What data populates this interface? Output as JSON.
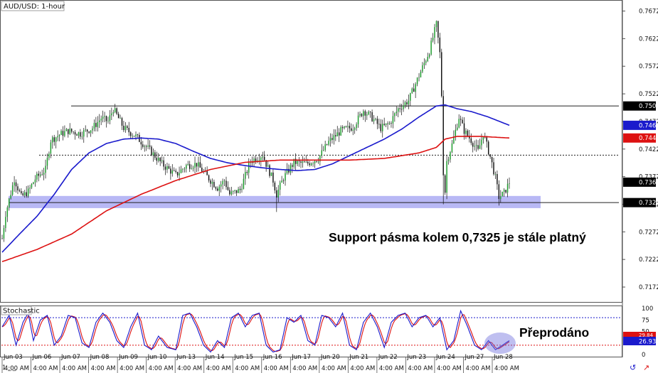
{
  "chart_data": {
    "type": "candlestick",
    "title": "AUD/USD: 1-hour",
    "ylim": [
      0.7145,
      0.7692
    ],
    "y_ticks": [
      "0.7672",
      "0.7622",
      "0.7572",
      "0.7522",
      "0.7472",
      "0.7422",
      "0.7372",
      "0.7322",
      "0.7272",
      "0.7222",
      "0.7172"
    ],
    "x_date_labels": [
      "Jun 03",
      "Jun 06",
      "Jun 07",
      "Jun 08",
      "Jun 09",
      "Jun 10",
      "Jun 13",
      "Jun 14",
      "Jun 15",
      "Jun 16",
      "Jun 17",
      "Jun 20",
      "Jun 21",
      "Jun 22",
      "Jun 23",
      "Jun 24",
      "Jun 27",
      "Jun 28"
    ],
    "x_time_label": "4:00 AM",
    "bottom_left_label": "1 _ _",
    "grid": false,
    "price_anchors": [
      [
        0,
        0.726
      ],
      [
        2,
        0.7305
      ],
      [
        7,
        0.7368
      ],
      [
        11,
        0.7335
      ],
      [
        15,
        0.7345
      ],
      [
        19,
        0.7368
      ],
      [
        25,
        0.7385
      ],
      [
        28,
        0.7438
      ],
      [
        33,
        0.7448
      ],
      [
        38,
        0.7455
      ],
      [
        45,
        0.745
      ],
      [
        52,
        0.746
      ],
      [
        57,
        0.7478
      ],
      [
        61,
        0.7472
      ],
      [
        64,
        0.7495
      ],
      [
        70,
        0.746
      ],
      [
        77,
        0.7445
      ],
      [
        85,
        0.742
      ],
      [
        92,
        0.7395
      ],
      [
        100,
        0.7375
      ],
      [
        106,
        0.7392
      ],
      [
        112,
        0.7395
      ],
      [
        118,
        0.7372
      ],
      [
        124,
        0.7352
      ],
      [
        128,
        0.7365
      ],
      [
        131,
        0.734
      ],
      [
        137,
        0.7348
      ],
      [
        143,
        0.74
      ],
      [
        150,
        0.7412
      ],
      [
        152,
        0.7395
      ],
      [
        156,
        0.7365
      ],
      [
        158,
        0.734
      ],
      [
        162,
        0.737
      ],
      [
        168,
        0.7398
      ],
      [
        175,
        0.7395
      ],
      [
        182,
        0.7405
      ],
      [
        188,
        0.7435
      ],
      [
        195,
        0.7455
      ],
      [
        202,
        0.7462
      ],
      [
        208,
        0.7492
      ],
      [
        212,
        0.7482
      ],
      [
        218,
        0.746
      ],
      [
        223,
        0.7468
      ],
      [
        228,
        0.7495
      ],
      [
        234,
        0.751
      ],
      [
        240,
        0.7555
      ],
      [
        246,
        0.76
      ],
      [
        250,
        0.7648
      ],
      [
        252,
        0.7595
      ],
      [
        253,
        0.752
      ],
      [
        254,
        0.738
      ],
      [
        255,
        0.7345
      ],
      [
        256,
        0.74
      ],
      [
        259,
        0.743
      ],
      [
        263,
        0.748
      ],
      [
        266,
        0.7455
      ],
      [
        270,
        0.7438
      ],
      [
        274,
        0.7418
      ],
      [
        277,
        0.745
      ],
      [
        281,
        0.7408
      ],
      [
        284,
        0.737
      ],
      [
        286,
        0.7335
      ],
      [
        289,
        0.7342
      ],
      [
        292,
        0.7362
      ]
    ],
    "wick_extremes": [
      {
        "index": 250,
        "high": 0.7655
      },
      {
        "index": 254,
        "low": 0.7322
      },
      {
        "index": 158,
        "low": 0.7308
      }
    ],
    "series": [
      {
        "name": "",
        "color": "#1a1acc",
        "values": [
          [
            0,
            0.7235
          ],
          [
            10,
            0.7268
          ],
          [
            20,
            0.73
          ],
          [
            30,
            0.734
          ],
          [
            40,
            0.7385
          ],
          [
            50,
            0.7415
          ],
          [
            60,
            0.7432
          ],
          [
            70,
            0.744
          ],
          [
            80,
            0.7442
          ],
          [
            90,
            0.744
          ],
          [
            100,
            0.7432
          ],
          [
            110,
            0.7418
          ],
          [
            120,
            0.7405
          ],
          [
            130,
            0.7397
          ],
          [
            140,
            0.7392
          ],
          [
            150,
            0.7388
          ],
          [
            160,
            0.7385
          ],
          [
            170,
            0.7383
          ],
          [
            180,
            0.7385
          ],
          [
            190,
            0.7395
          ],
          [
            200,
            0.741
          ],
          [
            210,
            0.7425
          ],
          [
            220,
            0.744
          ],
          [
            230,
            0.7458
          ],
          [
            240,
            0.748
          ],
          [
            250,
            0.75
          ],
          [
            255,
            0.7502
          ],
          [
            262,
            0.7495
          ],
          [
            270,
            0.749
          ],
          [
            280,
            0.748
          ],
          [
            292,
            0.7465
          ]
        ]
      },
      {
        "name": "",
        "color": "#dd1111",
        "values": [
          [
            0,
            0.7218
          ],
          [
            20,
            0.724
          ],
          [
            40,
            0.7268
          ],
          [
            60,
            0.731
          ],
          [
            80,
            0.734
          ],
          [
            100,
            0.7365
          ],
          [
            120,
            0.7385
          ],
          [
            140,
            0.7398
          ],
          [
            160,
            0.7402
          ],
          [
            180,
            0.7402
          ],
          [
            200,
            0.7402
          ],
          [
            220,
            0.7405
          ],
          [
            240,
            0.7415
          ],
          [
            250,
            0.7425
          ],
          [
            255,
            0.744
          ],
          [
            262,
            0.7445
          ],
          [
            275,
            0.7445
          ],
          [
            292,
            0.7442
          ]
        ]
      }
    ],
    "support_band": [
      0.7315,
      0.7337
    ],
    "horizontal_lines": [
      {
        "value": 0.75,
        "style": "solid"
      },
      {
        "value": 0.7411,
        "style": "dotted"
      },
      {
        "value": 0.7325,
        "style": "solid"
      }
    ],
    "price_tags": [
      {
        "text": "0.7500",
        "value": 0.75,
        "bg": "#000000",
        "fg": "#ffffff"
      },
      {
        "text": "0.7465",
        "value": 0.7465,
        "bg": "#1a1acc",
        "fg": "#ffffff"
      },
      {
        "text": "0.7442",
        "value": 0.7442,
        "bg": "#dd1111",
        "fg": "#ffffff"
      },
      {
        "text": "0.7362",
        "value": 0.7362,
        "bg": "#000000",
        "fg": "#ffffff"
      },
      {
        "text": "0.7325",
        "value": 0.7325,
        "bg": "#000000",
        "fg": "#ffffff"
      }
    ],
    "annotation_price": "Support pásma kolem 0,7325 je stále platný",
    "stochastic": {
      "title": "Stochastic",
      "ylim": [
        -5,
        105
      ],
      "y_ticks": [
        "100",
        "75",
        "50",
        "25",
        "0"
      ],
      "levels": [
        80,
        20
      ],
      "k_tag": "26.93",
      "d_tag_partial": "29.84",
      "annotation": "Přeprodáno",
      "k_anchors": [
        [
          0,
          60
        ],
        [
          4,
          85
        ],
        [
          8,
          20
        ],
        [
          12,
          70
        ],
        [
          15,
          90
        ],
        [
          18,
          30
        ],
        [
          22,
          75
        ],
        [
          26,
          85
        ],
        [
          30,
          20
        ],
        [
          34,
          40
        ],
        [
          38,
          85
        ],
        [
          42,
          80
        ],
        [
          46,
          25
        ],
        [
          50,
          15
        ],
        [
          54,
          70
        ],
        [
          58,
          90
        ],
        [
          62,
          70
        ],
        [
          66,
          30
        ],
        [
          70,
          15
        ],
        [
          74,
          60
        ],
        [
          78,
          90
        ],
        [
          82,
          20
        ],
        [
          86,
          10
        ],
        [
          90,
          40
        ],
        [
          95,
          15
        ],
        [
          100,
          10
        ],
        [
          104,
          85
        ],
        [
          108,
          90
        ],
        [
          112,
          60
        ],
        [
          116,
          20
        ],
        [
          120,
          5
        ],
        [
          124,
          30
        ],
        [
          128,
          15
        ],
        [
          132,
          80
        ],
        [
          136,
          90
        ],
        [
          140,
          60
        ],
        [
          144,
          85
        ],
        [
          148,
          90
        ],
        [
          152,
          20
        ],
        [
          156,
          5
        ],
        [
          160,
          10
        ],
        [
          164,
          80
        ],
        [
          168,
          70
        ],
        [
          172,
          85
        ],
        [
          176,
          30
        ],
        [
          180,
          20
        ],
        [
          184,
          85
        ],
        [
          188,
          80
        ],
        [
          192,
          60
        ],
        [
          196,
          90
        ],
        [
          200,
          20
        ],
        [
          204,
          10
        ],
        [
          208,
          70
        ],
        [
          212,
          90
        ],
        [
          216,
          60
        ],
        [
          220,
          15
        ],
        [
          224,
          70
        ],
        [
          228,
          85
        ],
        [
          232,
          90
        ],
        [
          236,
          60
        ],
        [
          240,
          80
        ],
        [
          244,
          85
        ],
        [
          248,
          60
        ],
        [
          252,
          80
        ],
        [
          256,
          10
        ],
        [
          260,
          30
        ],
        [
          264,
          95
        ],
        [
          268,
          60
        ],
        [
          272,
          20
        ],
        [
          276,
          10
        ],
        [
          280,
          30
        ],
        [
          284,
          10
        ],
        [
          288,
          20
        ],
        [
          292,
          30
        ]
      ]
    }
  }
}
